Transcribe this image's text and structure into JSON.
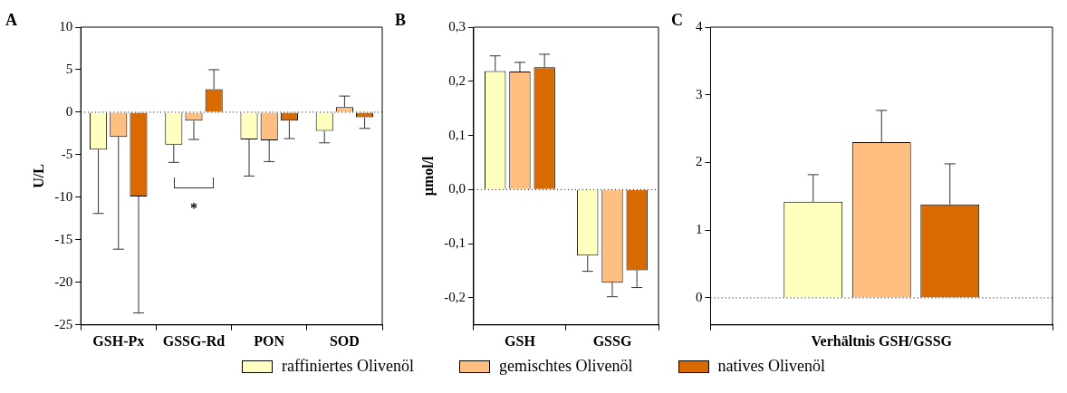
{
  "chart_data": [
    {
      "type": "bar",
      "title": "A",
      "ylabel": "U/L",
      "categories": [
        "GSH-Px",
        "GSSG-Rd",
        "PON",
        "SOD"
      ],
      "series": [
        {
          "name": "raffiniertes Olivenöl",
          "color": "#ffffc0",
          "values": [
            -4.4,
            -3.8,
            -3.2,
            -2.2
          ],
          "errors": [
            [
              -11.9,
              -4.4
            ],
            [
              -5.9,
              -3.8
            ],
            [
              -7.5,
              -3.2
            ],
            [
              -3.6,
              -2.2
            ]
          ]
        },
        {
          "name": "gemischtes Olivenöl",
          "color": "#ffbf80",
          "values": [
            -2.9,
            -1.0,
            -3.3,
            0.6
          ],
          "errors": [
            [
              -16.1,
              -2.9
            ],
            [
              -3.2,
              -1.0
            ],
            [
              -5.8,
              -3.3
            ],
            [
              0.6,
              1.9
            ]
          ]
        },
        {
          "name": "natives Olivenöl",
          "color": "#d96a00",
          "values": [
            -9.9,
            2.7,
            -1.0,
            -0.6
          ],
          "errors": [
            [
              -23.6,
              -9.9
            ],
            [
              2.7,
              5.0
            ],
            [
              -3.1,
              -1.0
            ],
            [
              -1.9,
              -0.6
            ]
          ]
        }
      ],
      "ylim": [
        -25,
        10
      ],
      "yticks": [
        -25,
        -20,
        -15,
        -10,
        -5,
        0,
        5,
        10
      ],
      "ref_lines": [
        {
          "axis": "y",
          "value": 0,
          "line_style": "dotted"
        }
      ],
      "annotations": [
        "*"
      ],
      "legend": "bottom",
      "grid": false
    },
    {
      "type": "bar",
      "title": "B",
      "ylabel": "µmol/l",
      "categories": [
        "GSH",
        "GSSG"
      ],
      "series": [
        {
          "color": "#ffffc0",
          "values": [
            0.219,
            -0.122
          ],
          "errors": [
            [
              0.219,
              0.247
            ],
            [
              -0.151,
              -0.122
            ]
          ]
        },
        {
          "color": "#ffbf80",
          "values": [
            0.218,
            -0.172
          ],
          "errors": [
            [
              0.218,
              0.235
            ],
            [
              -0.198,
              -0.172
            ]
          ]
        },
        {
          "color": "#d96a00",
          "values": [
            0.226,
            -0.149
          ],
          "errors": [
            [
              0.226,
              0.25
            ],
            [
              -0.181,
              -0.149
            ]
          ]
        }
      ],
      "ylim": [
        -0.25,
        0.3
      ],
      "yticks": [
        {
          "value": -0.2,
          "label": "-0,2"
        },
        {
          "value": -0.1,
          "label": "-0,1"
        },
        {
          "value": 0,
          "label": "0,0"
        },
        {
          "value": 0.1,
          "label": "0,1"
        },
        {
          "value": 0.2,
          "label": "0,2"
        },
        {
          "value": 0.3,
          "label": "0,3"
        }
      ],
      "ref_lines": [
        {
          "axis": "y",
          "value": 0,
          "line_style": "dotted"
        }
      ],
      "grid": false
    },
    {
      "type": "bar",
      "title": "C",
      "categories": [
        "Verhältnis GSH/GSSG"
      ],
      "series": [
        {
          "color": "#ffffc0",
          "values": [
            1.42
          ],
          "errors": [
            [
              1.42,
              1.82
            ]
          ]
        },
        {
          "color": "#ffbf80",
          "values": [
            2.3
          ],
          "errors": [
            [
              2.3,
              2.77
            ]
          ]
        },
        {
          "color": "#d96a00",
          "values": [
            1.38
          ],
          "errors": [
            [
              1.38,
              1.98
            ]
          ]
        }
      ],
      "ylim": [
        -0.4,
        4
      ],
      "yticks": [
        0,
        1,
        2,
        3,
        4
      ],
      "ref_lines": [
        {
          "axis": "y",
          "value": 0,
          "line_style": "dotted"
        }
      ],
      "grid": false
    }
  ]
}
